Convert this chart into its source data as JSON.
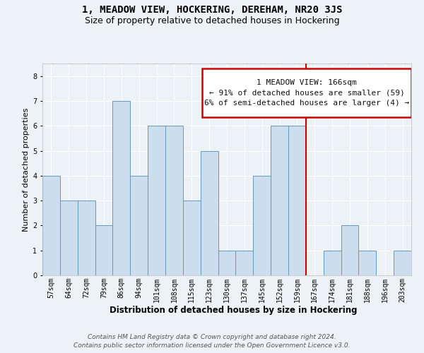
{
  "title": "1, MEADOW VIEW, HOCKERING, DEREHAM, NR20 3JS",
  "subtitle": "Size of property relative to detached houses in Hockering",
  "xlabel": "Distribution of detached houses by size in Hockering",
  "ylabel": "Number of detached properties",
  "bar_labels": [
    "57sqm",
    "64sqm",
    "72sqm",
    "79sqm",
    "86sqm",
    "94sqm",
    "101sqm",
    "108sqm",
    "115sqm",
    "123sqm",
    "130sqm",
    "137sqm",
    "145sqm",
    "152sqm",
    "159sqm",
    "167sqm",
    "174sqm",
    "181sqm",
    "188sqm",
    "196sqm",
    "203sqm"
  ],
  "bar_values": [
    4,
    3,
    3,
    2,
    7,
    4,
    6,
    6,
    3,
    5,
    1,
    1,
    4,
    6,
    6,
    0,
    1,
    2,
    1,
    0,
    1
  ],
  "bar_color": "#ccdded",
  "bar_edgecolor": "#6699bb",
  "vline_x": 15.5,
  "vline_color": "#cc0000",
  "annotation_text": "1 MEADOW VIEW: 166sqm\n← 91% of detached houses are smaller (59)\n6% of semi-detached houses are larger (4) →",
  "annotation_box_color": "#cc0000",
  "annotation_text_color": "#111111",
  "ylim": [
    0,
    8.5
  ],
  "yticks": [
    0,
    1,
    2,
    3,
    4,
    5,
    6,
    7,
    8
  ],
  "background_color": "#edf2f7",
  "grid_color": "#ffffff",
  "footer": "Contains HM Land Registry data © Crown copyright and database right 2024.\nContains public sector information licensed under the Open Government Licence v3.0.",
  "title_fontsize": 10,
  "subtitle_fontsize": 9,
  "xlabel_fontsize": 8.5,
  "ylabel_fontsize": 8,
  "tick_fontsize": 7,
  "annotation_fontsize": 8,
  "footer_fontsize": 6.5
}
